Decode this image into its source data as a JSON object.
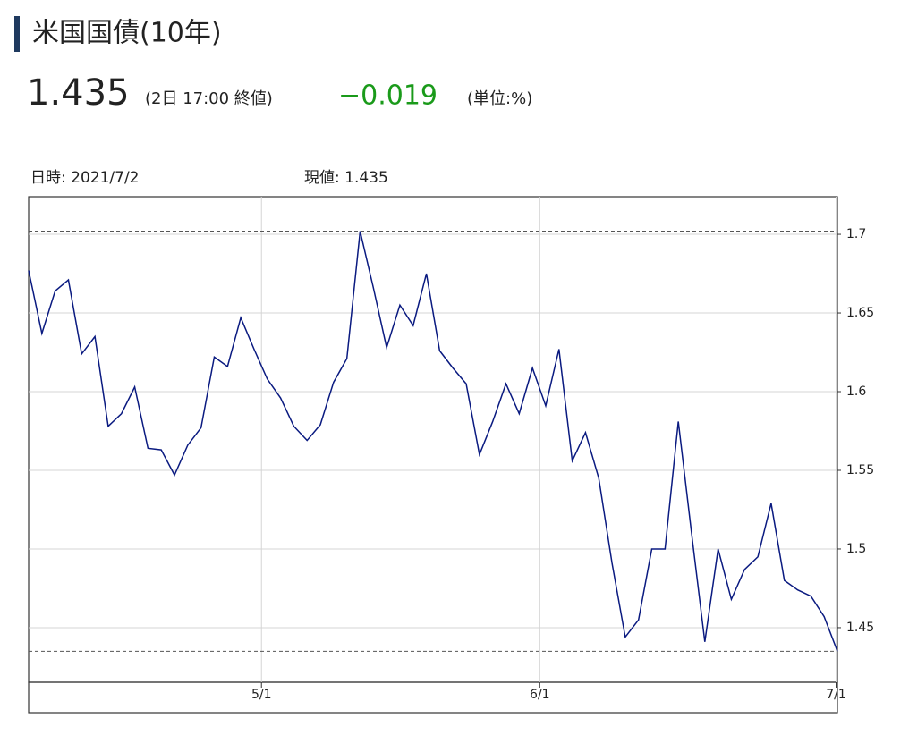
{
  "header": {
    "title": "米国国債(10年)",
    "price": "1.435",
    "time": "(2日 17:00 終値)",
    "change": "−0.019",
    "unit": "(単位:%)"
  },
  "info": {
    "date": "日時: 2021/7/2",
    "current": "現値: 1.435"
  },
  "chart_data": {
    "type": "line",
    "x": [
      0,
      1,
      2,
      3,
      4,
      5,
      6,
      7,
      8,
      9,
      10,
      11,
      12,
      13,
      14,
      15,
      16,
      17,
      18,
      19,
      20,
      21,
      22,
      23,
      24,
      25,
      26,
      27,
      28,
      29,
      30,
      31,
      32,
      33,
      34,
      35,
      36,
      37,
      38,
      39,
      40,
      41,
      42,
      43,
      44,
      45,
      46,
      47,
      48,
      49,
      50,
      51,
      52,
      53,
      54,
      55,
      56,
      57,
      58,
      59,
      60,
      61
    ],
    "series": [
      {
        "color": "#0a1a80",
        "values": [
          1.677,
          1.637,
          1.664,
          1.671,
          1.624,
          1.635,
          1.578,
          1.586,
          1.603,
          1.564,
          1.563,
          1.547,
          1.566,
          1.577,
          1.622,
          1.616,
          1.647,
          1.627,
          1.608,
          1.596,
          1.578,
          1.569,
          1.579,
          1.606,
          1.621,
          1.702,
          1.666,
          1.628,
          1.655,
          1.642,
          1.675,
          1.626,
          1.615,
          1.605,
          1.56,
          1.581,
          1.605,
          1.586,
          1.615,
          1.591,
          1.627,
          1.556,
          1.574,
          1.545,
          1.491,
          1.444,
          1.455,
          1.5,
          1.5,
          1.581,
          1.51,
          1.441,
          1.5,
          1.468,
          1.487,
          1.495,
          1.529,
          1.48,
          1.474,
          1.47,
          1.457,
          1.435
        ]
      }
    ],
    "xlim": [
      0,
      61
    ],
    "xticks": [
      {
        "value": 17.56,
        "label": "5/1"
      },
      {
        "value": 38.55,
        "label": "6/1"
      },
      {
        "value": 60.9,
        "label": "7/1"
      }
    ],
    "ylim": [
      1.4153,
      1.7239
    ],
    "yticks": [
      1.45,
      1.5,
      1.55,
      1.6,
      1.65,
      1.7
    ],
    "reference_lines": [
      1.702,
      1.435
    ],
    "grid": true
  }
}
